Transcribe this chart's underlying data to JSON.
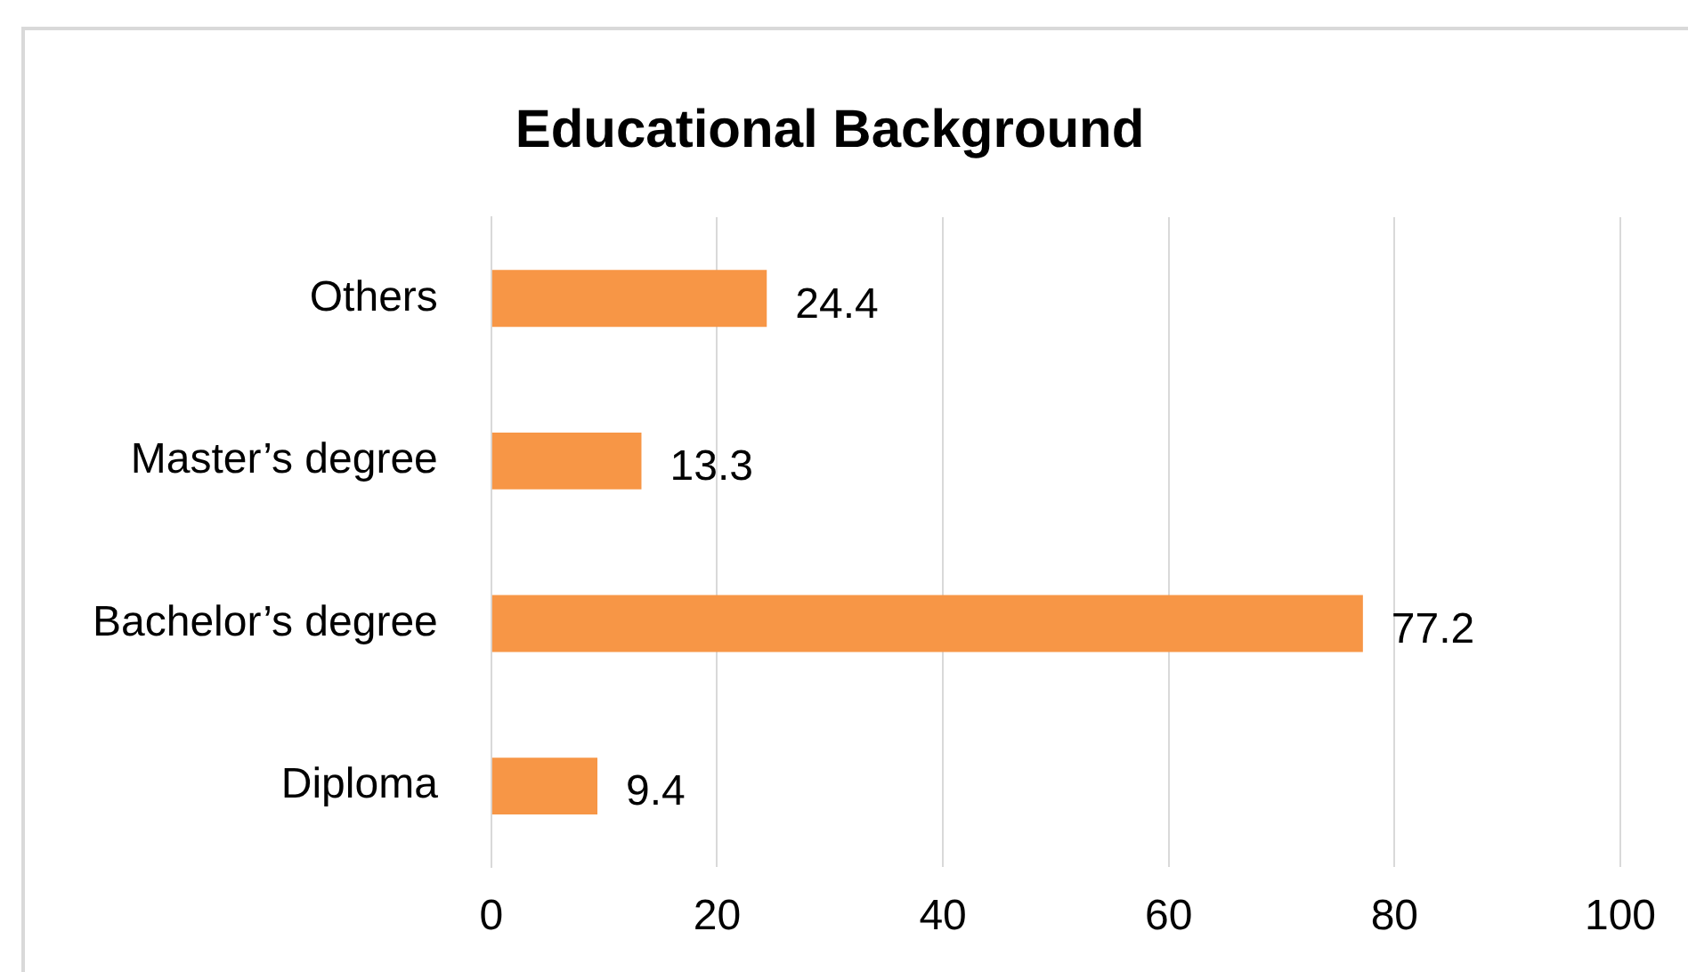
{
  "chart_data": {
    "type": "bar",
    "orientation": "horizontal",
    "title": "Educational Background",
    "categories": [
      "Others",
      "Master’s degree",
      "Bachelor’s degree",
      "Diploma"
    ],
    "values": [
      24.4,
      13.3,
      77.2,
      9.4
    ],
    "color": "#f79646",
    "xlim": [
      0,
      100
    ],
    "xticks": [
      0,
      20,
      40,
      60,
      80,
      100
    ],
    "grid": "x",
    "data_labels": true,
    "legend": false
  }
}
